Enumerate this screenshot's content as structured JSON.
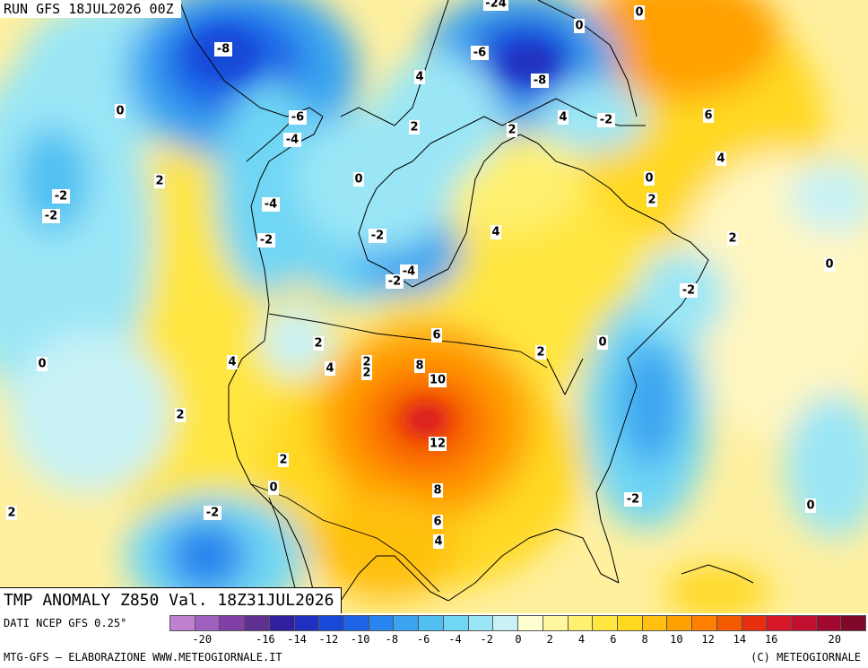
{
  "header": {
    "run_label": "RUN GFS 18JUL2026 00Z"
  },
  "title": {
    "text": "TMP ANOMALY Z850 Val. 18Z31JUL2026"
  },
  "footer": {
    "source": "DATI NCEP GFS 0.25°",
    "credits_left": "MTG-GFS — ELABORAZIONE WWW.METEOGIORNALE.IT",
    "credits_right": "(C) METEOGIORNALE"
  },
  "legend": {
    "colors": [
      "#c080d0",
      "#a060c0",
      "#8040a8",
      "#603090",
      "#3020a0",
      "#2030c0",
      "#1848d8",
      "#1e64e6",
      "#2884ee",
      "#3aa4f0",
      "#50c0f2",
      "#70d6f4",
      "#9ae6f6",
      "#c8f2f6",
      "#ffffd0",
      "#fff6a0",
      "#fff070",
      "#ffe640",
      "#ffd820",
      "#ffc010",
      "#ffa000",
      "#ff8000",
      "#f45a00",
      "#e83010",
      "#d81828",
      "#c01030",
      "#a00830",
      "#800828"
    ],
    "ticks": [
      "-20",
      "-18",
      "-16",
      "-14",
      "-12",
      "-10",
      "-8",
      "-6",
      "-4",
      "-2",
      "0",
      "2",
      "4",
      "6",
      "8",
      "10",
      "12",
      "14",
      "16",
      "18",
      "20"
    ],
    "ticks_visible": [
      "-20",
      "-16",
      "-14",
      "-12",
      "-10",
      "-8",
      "-6",
      "-4",
      "-2",
      "0",
      "2",
      "4",
      "6",
      "8",
      "10",
      "12",
      "14",
      "16",
      "20"
    ]
  },
  "map_labels": [
    {
      "text": "-8"
    },
    {
      "text": "-24"
    },
    {
      "text": "0"
    },
    {
      "text": "-6"
    },
    {
      "text": "-8"
    },
    {
      "text": "4"
    },
    {
      "text": "0"
    },
    {
      "text": "-6"
    },
    {
      "text": "-4"
    },
    {
      "text": "2"
    },
    {
      "text": "2"
    },
    {
      "text": "4"
    },
    {
      "text": "-2"
    },
    {
      "text": "6"
    },
    {
      "text": "0"
    },
    {
      "text": "4"
    },
    {
      "text": "2"
    },
    {
      "text": "0"
    },
    {
      "text": "0"
    },
    {
      "text": "2"
    },
    {
      "text": "-2"
    },
    {
      "text": "-2"
    },
    {
      "text": "-4"
    },
    {
      "text": "-2"
    },
    {
      "text": "-2"
    },
    {
      "text": "4"
    },
    {
      "text": "-4"
    },
    {
      "text": "-2"
    },
    {
      "text": "2"
    },
    {
      "text": "0"
    },
    {
      "text": "-2"
    },
    {
      "text": "6"
    },
    {
      "text": "0"
    },
    {
      "text": "2"
    },
    {
      "text": "2"
    },
    {
      "text": "4"
    },
    {
      "text": "4"
    },
    {
      "text": "2"
    },
    {
      "text": "8"
    },
    {
      "text": "10"
    },
    {
      "text": "0"
    },
    {
      "text": "2"
    },
    {
      "text": "12"
    },
    {
      "text": "2"
    },
    {
      "text": "8"
    },
    {
      "text": "0"
    },
    {
      "text": "-2"
    },
    {
      "text": "2"
    },
    {
      "text": "-2"
    },
    {
      "text": "6"
    },
    {
      "text": "4"
    },
    {
      "text": "0"
    },
    {
      "text": "2"
    }
  ]
}
